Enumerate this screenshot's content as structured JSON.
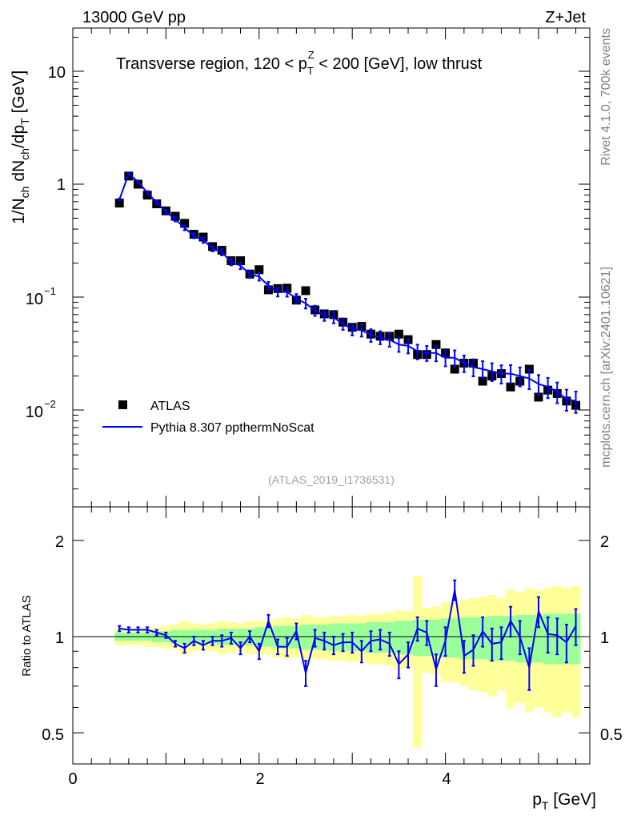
{
  "header": {
    "energy": "13000 GeV pp",
    "process": "Z+Jet",
    "side_rivet": "Rivet 4.1.0,  700k events",
    "side_mcplots": "mcplots.cern.ch [arXiv:2401.10621]"
  },
  "chart_data": [
    {
      "type": "scatter",
      "title": "Transverse region, 120 < p_T^Z < 200 [GeV], low thrust",
      "title_parts": {
        "pre": "Transverse region, 120 < p",
        "sup": "Z",
        "sub": "T",
        "post": " < 200 [GeV], low thrust"
      },
      "analysis_label": "(ATLAS_2019_I1736531)",
      "ylabel": "1/N_ch dN_ch/dp_T [GeV]",
      "ylabel_parts": {
        "a": "1/N",
        "a_sub": "ch",
        "b": " dN",
        "b_sub": "ch",
        "c": "/dp",
        "c_sub": "T",
        "d": " [GeV]"
      },
      "yscale": "log",
      "ylim": [
        0.0013,
        25
      ],
      "xlim": [
        0,
        5.55
      ],
      "y_tick_labels": [
        {
          "value": 0.01,
          "base": "10",
          "exp": "−2"
        },
        {
          "value": 0.1,
          "base": "10",
          "exp": "−1"
        },
        {
          "value": 1,
          "base": "1",
          "exp": ""
        },
        {
          "value": 10,
          "base": "10",
          "exp": ""
        }
      ],
      "legend": [
        {
          "label": "ATLAS",
          "marker": "square",
          "color": "#000000"
        },
        {
          "label": "Pythia 8.307 ppthermNoScat",
          "marker": "line",
          "color": "#0000ff"
        }
      ],
      "series": [
        {
          "name": "ATLAS",
          "x": [
            0.5,
            0.6,
            0.7,
            0.8,
            0.9,
            1.0,
            1.1,
            1.2,
            1.3,
            1.4,
            1.5,
            1.6,
            1.7,
            1.8,
            1.9,
            2.0,
            2.1,
            2.2,
            2.3,
            2.4,
            2.5,
            2.6,
            2.7,
            2.8,
            2.9,
            3.0,
            3.1,
            3.2,
            3.3,
            3.4,
            3.5,
            3.6,
            3.7,
            3.8,
            3.9,
            4.0,
            4.1,
            4.2,
            4.3,
            4.4,
            4.5,
            4.6,
            4.7,
            4.8,
            4.9,
            5.0,
            5.1,
            5.2,
            5.3,
            5.4
          ],
          "values": [
            0.68,
            1.18,
            1.0,
            0.8,
            0.67,
            0.58,
            0.52,
            0.45,
            0.36,
            0.34,
            0.28,
            0.26,
            0.21,
            0.21,
            0.16,
            0.175,
            0.116,
            0.119,
            0.12,
            0.094,
            0.114,
            0.077,
            0.071,
            0.07,
            0.06,
            0.054,
            0.055,
            0.047,
            0.045,
            0.045,
            0.047,
            0.042,
            0.031,
            0.031,
            0.038,
            0.032,
            0.023,
            0.026,
            0.026,
            0.018,
            0.02,
            0.021,
            0.016,
            0.018,
            0.023,
            0.013,
            0.015,
            0.014,
            0.012,
            0.011
          ]
        },
        {
          "name": "Pythia 8.307 ppthermNoScat",
          "x": [
            0.5,
            0.6,
            0.7,
            0.8,
            0.9,
            1.0,
            1.1,
            1.2,
            1.3,
            1.4,
            1.5,
            1.6,
            1.7,
            1.8,
            1.9,
            2.0,
            2.1,
            2.2,
            2.3,
            2.4,
            2.5,
            2.6,
            2.7,
            2.8,
            2.9,
            3.0,
            3.1,
            3.2,
            3.3,
            3.4,
            3.5,
            3.6,
            3.7,
            3.8,
            3.9,
            4.0,
            4.1,
            4.2,
            4.3,
            4.4,
            4.5,
            4.6,
            4.7,
            4.8,
            4.9,
            5.0,
            5.1,
            5.2,
            5.3,
            5.4
          ],
          "values": [
            0.73,
            1.24,
            1.05,
            0.84,
            0.69,
            0.57,
            0.49,
            0.41,
            0.35,
            0.32,
            0.27,
            0.25,
            0.205,
            0.19,
            0.16,
            0.152,
            0.126,
            0.111,
            0.111,
            0.097,
            0.088,
            0.076,
            0.069,
            0.066,
            0.058,
            0.052,
            0.051,
            0.046,
            0.044,
            0.042,
            0.038,
            0.037,
            0.033,
            0.032,
            0.032,
            0.029,
            0.029,
            0.026,
            0.024,
            0.023,
            0.022,
            0.021,
            0.021,
            0.02,
            0.019,
            0.017,
            0.016,
            0.0145,
            0.0125,
            0.012
          ]
        }
      ]
    },
    {
      "type": "line",
      "ylabel": "Ratio to ATLAS",
      "xlabel": "p_T [GeV]",
      "xlabel_parts": {
        "main": "p",
        "sub": "T",
        "post": " [GeV]"
      },
      "yscale": "log",
      "ylim": [
        0.4,
        2.5
      ],
      "xlim": [
        0,
        5.55
      ],
      "x_tick_labels": [
        "0",
        "2",
        "4"
      ],
      "y_tick_labels": [
        "0.5",
        "1",
        "2"
      ],
      "bands": {
        "x": [
          0.5,
          0.6,
          0.7,
          0.8,
          0.9,
          1.0,
          1.1,
          1.2,
          1.3,
          1.4,
          1.5,
          1.6,
          1.7,
          1.8,
          1.9,
          2.0,
          2.1,
          2.2,
          2.3,
          2.4,
          2.5,
          2.6,
          2.7,
          2.8,
          2.9,
          3.0,
          3.1,
          3.2,
          3.3,
          3.4,
          3.5,
          3.6,
          3.7,
          3.8,
          3.9,
          4.0,
          4.1,
          4.2,
          4.3,
          4.4,
          4.5,
          4.6,
          4.7,
          4.8,
          4.9,
          5.0,
          5.1,
          5.2,
          5.3,
          5.4
        ],
        "stat_halfwidth": [
          0.03,
          0.03,
          0.03,
          0.03,
          0.04,
          0.04,
          0.05,
          0.05,
          0.05,
          0.05,
          0.05,
          0.06,
          0.06,
          0.06,
          0.06,
          0.07,
          0.07,
          0.08,
          0.08,
          0.08,
          0.09,
          0.09,
          0.09,
          0.1,
          0.1,
          0.1,
          0.1,
          0.11,
          0.11,
          0.11,
          0.12,
          0.12,
          0.13,
          0.13,
          0.13,
          0.14,
          0.14,
          0.15,
          0.15,
          0.15,
          0.16,
          0.16,
          0.16,
          0.17,
          0.17,
          0.17,
          0.18,
          0.18,
          0.18,
          0.18
        ],
        "syst_halfwidth": [
          0.06,
          0.06,
          0.06,
          0.07,
          0.07,
          0.08,
          0.09,
          0.12,
          0.1,
          0.09,
          0.1,
          0.12,
          0.11,
          0.1,
          0.12,
          0.12,
          0.12,
          0.14,
          0.15,
          0.14,
          0.17,
          0.15,
          0.15,
          0.16,
          0.16,
          0.17,
          0.16,
          0.18,
          0.18,
          0.19,
          0.21,
          0.2,
          0.55,
          0.23,
          0.24,
          0.28,
          0.28,
          0.3,
          0.32,
          0.33,
          0.35,
          0.32,
          0.4,
          0.38,
          0.42,
          0.4,
          0.42,
          0.44,
          0.42,
          0.44
        ]
      },
      "series": [
        {
          "name": "Pythia 8.307 ppthermNoScat / ATLAS",
          "x": [
            0.5,
            0.6,
            0.7,
            0.8,
            0.9,
            1.0,
            1.1,
            1.2,
            1.3,
            1.4,
            1.5,
            1.6,
            1.7,
            1.8,
            1.9,
            2.0,
            2.1,
            2.2,
            2.3,
            2.4,
            2.5,
            2.6,
            2.7,
            2.8,
            2.9,
            3.0,
            3.1,
            3.2,
            3.3,
            3.4,
            3.5,
            3.6,
            3.7,
            3.8,
            3.9,
            4.0,
            4.1,
            4.2,
            4.3,
            4.4,
            4.5,
            4.6,
            4.7,
            4.8,
            4.9,
            5.0,
            5.1,
            5.2,
            5.3,
            5.4
          ],
          "values": [
            1.06,
            1.05,
            1.05,
            1.05,
            1.03,
            1.01,
            0.95,
            0.92,
            0.97,
            0.94,
            0.97,
            0.97,
            0.99,
            0.92,
            1.0,
            0.9,
            1.12,
            0.93,
            0.93,
            1.04,
            0.77,
            0.99,
            0.97,
            0.94,
            0.96,
            0.96,
            0.9,
            0.97,
            0.98,
            0.95,
            0.82,
            0.88,
            1.06,
            1.03,
            0.79,
            0.97,
            1.4,
            0.87,
            0.91,
            1.04,
            0.95,
            0.96,
            1.12,
            1.0,
            0.8,
            1.2,
            1.02,
            1.01,
            0.96,
            1.08
          ],
          "err": [
            0.02,
            0.02,
            0.02,
            0.02,
            0.02,
            0.02,
            0.02,
            0.03,
            0.03,
            0.03,
            0.03,
            0.04,
            0.04,
            0.04,
            0.04,
            0.05,
            0.05,
            0.05,
            0.06,
            0.06,
            0.07,
            0.06,
            0.06,
            0.06,
            0.06,
            0.07,
            0.07,
            0.07,
            0.07,
            0.08,
            0.08,
            0.08,
            0.09,
            0.09,
            0.09,
            0.1,
            0.1,
            0.1,
            0.1,
            0.11,
            0.11,
            0.11,
            0.12,
            0.12,
            0.12,
            0.13,
            0.13,
            0.13,
            0.13,
            0.14
          ]
        }
      ]
    }
  ]
}
